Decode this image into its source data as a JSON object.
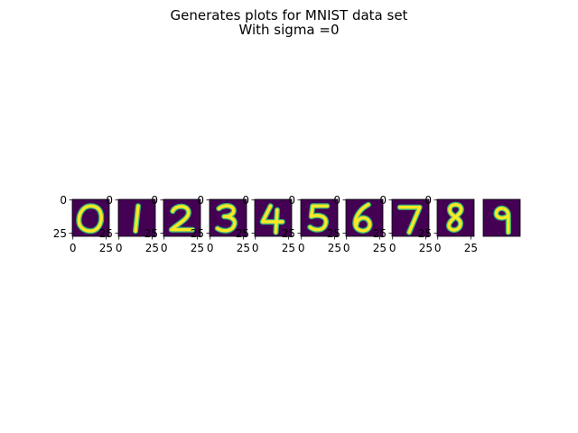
{
  "title_line1": "Generates plots for MNIST data set",
  "title_line2": "With sigma =0",
  "chart_data": {
    "type": "heatmap",
    "title": "Generates plots for MNIST data set\nWith sigma =0",
    "colormap": "viridis",
    "background_color": "#440154",
    "stroke_color": "#fde725",
    "image_size": [
      28,
      28
    ],
    "panels": [
      {
        "digit": "0",
        "xticks": [
          "0",
          "25"
        ],
        "yticks": [
          "0",
          "25"
        ]
      },
      {
        "digit": "1",
        "xticks": [
          "0",
          "25"
        ],
        "yticks": [
          "0",
          "25"
        ]
      },
      {
        "digit": "2",
        "xticks": [
          "0",
          "25"
        ],
        "yticks": [
          "0",
          "25"
        ]
      },
      {
        "digit": "3",
        "xticks": [
          "0",
          "25"
        ],
        "yticks": [
          "0",
          "25"
        ]
      },
      {
        "digit": "4",
        "xticks": [
          "0",
          "25"
        ],
        "yticks": [
          "0",
          "25"
        ]
      },
      {
        "digit": "5",
        "xticks": [
          "0",
          "25"
        ],
        "yticks": [
          "0",
          "25"
        ]
      },
      {
        "digit": "6",
        "xticks": [
          "0",
          "25"
        ],
        "yticks": [
          "0",
          "25"
        ]
      },
      {
        "digit": "7",
        "xticks": [
          "0",
          "25"
        ],
        "yticks": [
          "0",
          "25"
        ]
      },
      {
        "digit": "8",
        "xticks": [
          "0",
          "25"
        ],
        "yticks": [
          "0",
          "25"
        ]
      },
      {
        "digit": "9",
        "xticks": [],
        "yticks": []
      }
    ]
  }
}
